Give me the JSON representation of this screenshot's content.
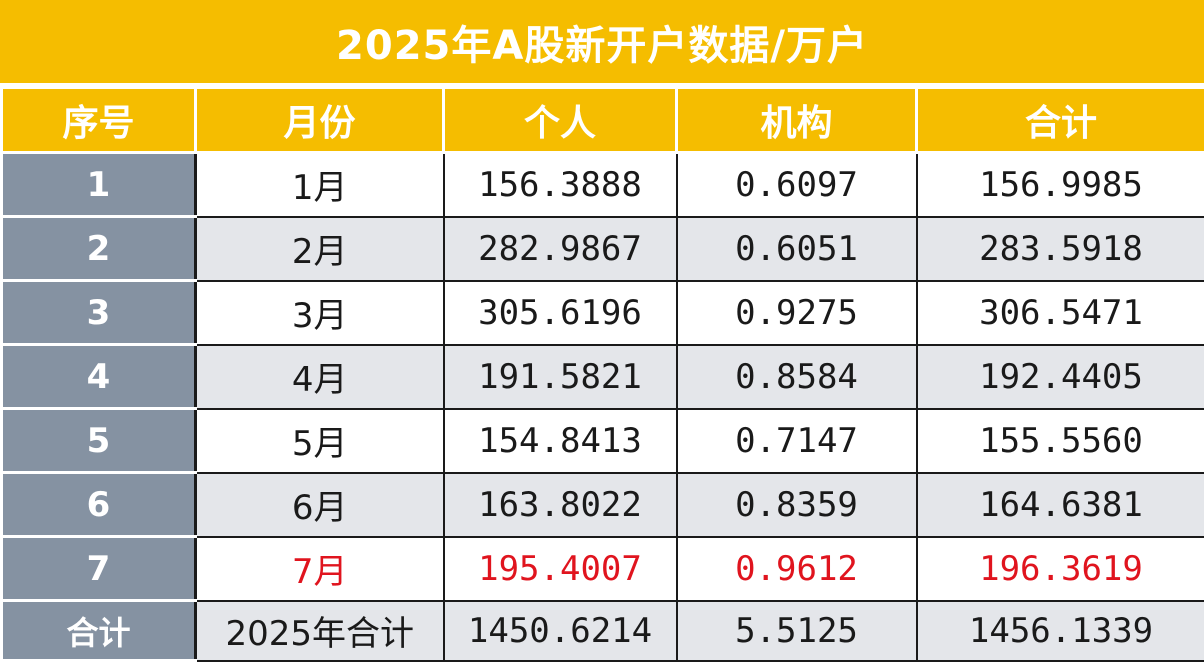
{
  "title": "2025年A股新开户数据/万户",
  "columns": [
    "序号",
    "月份",
    "个人",
    "机构",
    "合计"
  ],
  "rows": [
    {
      "seq": "1",
      "month": "1月",
      "individual": "156.3888",
      "institution": "0.6097",
      "total": "156.9985"
    },
    {
      "seq": "2",
      "month": "2月",
      "individual": "282.9867",
      "institution": "0.6051",
      "total": "283.5918"
    },
    {
      "seq": "3",
      "month": "3月",
      "individual": "305.6196",
      "institution": "0.9275",
      "total": "306.5471"
    },
    {
      "seq": "4",
      "month": "4月",
      "individual": "191.5821",
      "institution": "0.8584",
      "total": "192.4405"
    },
    {
      "seq": "5",
      "month": "5月",
      "individual": "154.8413",
      "institution": "0.7147",
      "total": "155.5560"
    },
    {
      "seq": "6",
      "month": "6月",
      "individual": "163.8022",
      "institution": "0.8359",
      "total": "164.6381"
    },
    {
      "seq": "7",
      "month": "7月",
      "individual": "195.4007",
      "institution": "0.9612",
      "total": "196.3619"
    }
  ],
  "summary": {
    "label": "合计",
    "month": "2025年合计",
    "individual": "1450.6214",
    "institution": "5.5125",
    "total": "1456.1339"
  },
  "colors": {
    "header_bg": "#f5bd00",
    "seq_bg": "#8592a2",
    "highlight_text": "#e0141e",
    "stripe_bg": "#e4e6ea"
  }
}
